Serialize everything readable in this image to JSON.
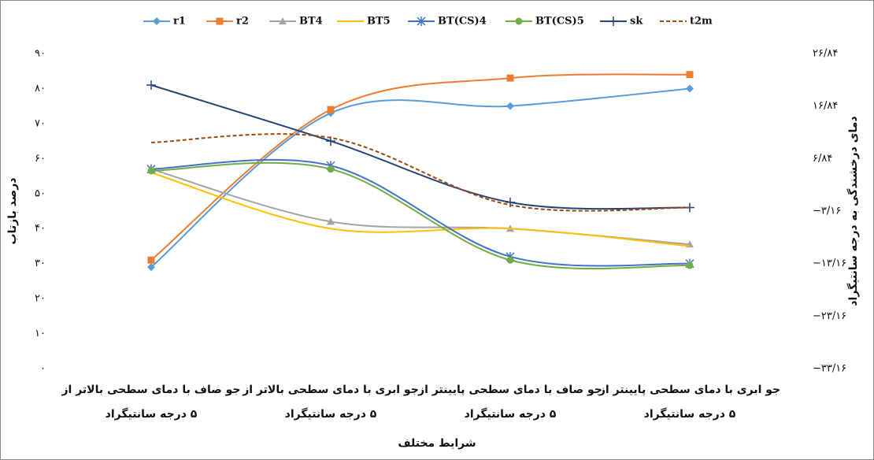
{
  "chart_data": {
    "type": "line",
    "x_label": "شرایط مختلف",
    "y_label": "درصد بازتاب",
    "y2_label": "دمای درخشندگی به درجه سانتیگراد",
    "categories": [
      [
        "جو صاف با دمای سطحی بالاتر از",
        "۵ درجه سانتیگراد"
      ],
      [
        "جو ابری با دمای سطحی بالاتر از",
        "۵ درجه سانتیگراد"
      ],
      [
        "جو صاف با دمای سطحی پایینتر از",
        "۵ درجه سانتیگراد"
      ],
      [
        "جو ابری با دمای سطحی پایینتر از",
        "۵ درجه سانتیگراد"
      ]
    ],
    "ylim": [
      0,
      90
    ],
    "yticks": [
      {
        "value": 0,
        "label": "۰"
      },
      {
        "value": 10,
        "label": "۱۰"
      },
      {
        "value": 20,
        "label": "۲۰"
      },
      {
        "value": 30,
        "label": "۳۰"
      },
      {
        "value": 40,
        "label": "۴۰"
      },
      {
        "value": 50,
        "label": "۵۰"
      },
      {
        "value": 60,
        "label": "۶۰"
      },
      {
        "value": 70,
        "label": "۷۰"
      },
      {
        "value": 80,
        "label": "۸۰"
      },
      {
        "value": 90,
        "label": "۹۰"
      }
    ],
    "y2lim": [
      -33.16,
      26.84
    ],
    "y2ticks": [
      {
        "value": -33.16,
        "label": "−۳۳/۱۶"
      },
      {
        "value": -23.16,
        "label": "−۲۳/۱۶"
      },
      {
        "value": -13.16,
        "label": "−۱۳/۱۶"
      },
      {
        "value": -3.16,
        "label": "−۳/۱۶"
      },
      {
        "value": 6.84,
        "label": "۶/۸۴"
      },
      {
        "value": 16.84,
        "label": "۱۶/۸۴"
      },
      {
        "value": 26.84,
        "label": "۲۶/۸۴"
      }
    ],
    "series": [
      {
        "name": "r1",
        "color": "#5b9bd5",
        "marker": "diamond",
        "values": [
          29,
          73,
          75,
          80
        ]
      },
      {
        "name": "r2",
        "color": "#ed7d31",
        "marker": "square",
        "values": [
          31,
          74,
          83,
          84
        ]
      },
      {
        "name": "BT4",
        "color": "#a5a5a5",
        "marker": "triangle",
        "values": [
          57,
          42,
          40,
          35.5
        ]
      },
      {
        "name": "BT5",
        "color": "#ffc000",
        "marker": "none",
        "values": [
          56,
          40,
          40,
          35
        ]
      },
      {
        "name": "BT(CS)4",
        "color": "#4472c4",
        "marker": "star",
        "values": [
          57,
          58,
          32,
          30
        ]
      },
      {
        "name": "BT(CS)5",
        "color": "#70ad47",
        "marker": "circle",
        "values": [
          56.5,
          57,
          31,
          29.5
        ]
      },
      {
        "name": "sk",
        "color": "#264478",
        "marker": "plus",
        "values": [
          81,
          65,
          47.5,
          46
        ]
      },
      {
        "name": "t2m",
        "color": "#9e480e",
        "marker": "none",
        "dash": true,
        "axis": "y2",
        "values": [
          9.9,
          10.8,
          -2.0,
          -2.5
        ]
      }
    ]
  }
}
